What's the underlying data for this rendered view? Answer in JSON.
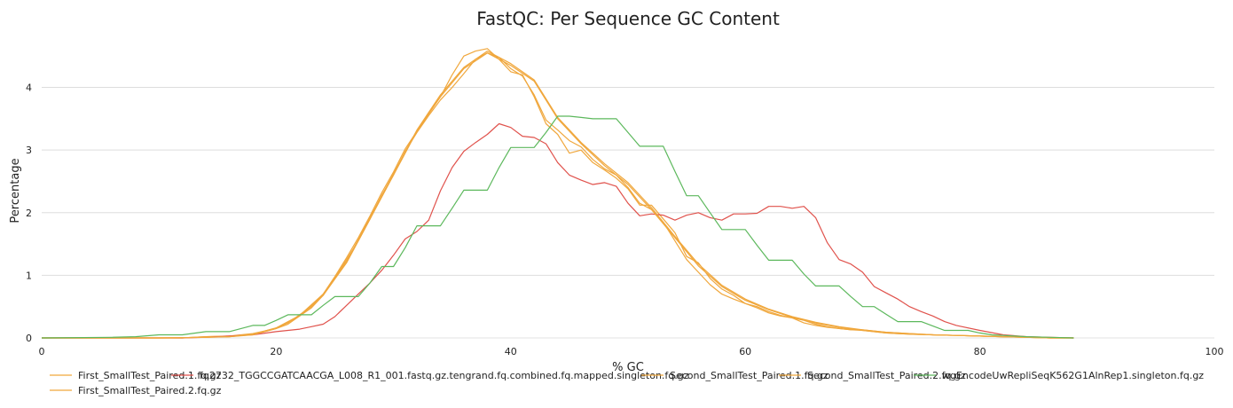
{
  "chart_data": {
    "type": "line",
    "title": "FastQC: Per Sequence GC Content",
    "xlabel": "% GC",
    "ylabel": "Percentage",
    "xlim": [
      0,
      100
    ],
    "ylim": [
      0,
      4.9
    ],
    "xticks": [
      0,
      20,
      40,
      60,
      80,
      100
    ],
    "yticks": [
      0,
      1,
      2,
      3,
      4
    ],
    "grid": "horizontal",
    "legend_position": "bottom",
    "series": [
      {
        "name": "First_SmallTest_Paired.1.fq.gz",
        "color": "#f0a73c",
        "x": [
          0,
          2,
          4,
          6,
          8,
          10,
          12,
          14,
          16,
          17,
          18,
          19,
          20,
          21,
          22,
          23,
          24,
          25,
          26,
          27,
          28,
          29,
          30,
          31,
          32,
          33,
          34,
          35,
          36,
          37,
          38,
          39,
          40,
          41,
          42,
          43,
          44,
          45,
          46,
          47,
          48,
          49,
          50,
          51,
          52,
          53,
          54,
          55,
          56,
          57,
          58,
          59,
          60,
          61,
          62,
          63,
          64,
          65,
          66,
          67,
          68,
          69,
          70,
          72,
          74,
          76,
          78,
          80,
          82,
          84,
          86,
          88
        ],
        "y": [
          0,
          0,
          0,
          0,
          0,
          0,
          0,
          0.02,
          0.03,
          0.04,
          0.06,
          0.1,
          0.15,
          0.22,
          0.35,
          0.48,
          0.68,
          0.95,
          1.25,
          1.55,
          1.9,
          2.28,
          2.6,
          2.98,
          3.28,
          3.55,
          3.8,
          4.0,
          4.22,
          4.45,
          4.55,
          4.48,
          4.3,
          4.18,
          3.88,
          3.48,
          3.32,
          3.15,
          3.05,
          2.85,
          2.7,
          2.6,
          2.4,
          2.15,
          2.05,
          1.85,
          1.55,
          1.25,
          1.05,
          0.85,
          0.7,
          0.62,
          0.55,
          0.48,
          0.4,
          0.35,
          0.32,
          0.28,
          0.22,
          0.18,
          0.15,
          0.13,
          0.12,
          0.08,
          0.06,
          0.05,
          0.04,
          0.03,
          0.02,
          0.01,
          0,
          0
        ]
      },
      {
        "name": "First_SmallTest_Paired.2.fq.gz",
        "color": "#f0a73c",
        "x": [
          0,
          2,
          4,
          6,
          8,
          10,
          12,
          14,
          16,
          17,
          18,
          19,
          20,
          21,
          22,
          23,
          24,
          25,
          26,
          27,
          28,
          29,
          30,
          31,
          32,
          33,
          34,
          35,
          36,
          37,
          38,
          39,
          40,
          41,
          42,
          43,
          44,
          45,
          46,
          47,
          48,
          49,
          50,
          51,
          52,
          53,
          54,
          55,
          56,
          57,
          58,
          59,
          60,
          61,
          62,
          63,
          64,
          65,
          66,
          67,
          68,
          69,
          70,
          72,
          74,
          76,
          78,
          80,
          82,
          84,
          86,
          88
        ],
        "y": [
          0,
          0,
          0,
          0,
          0,
          0,
          0,
          0.02,
          0.03,
          0.05,
          0.07,
          0.11,
          0.16,
          0.24,
          0.37,
          0.5,
          0.7,
          0.98,
          1.28,
          1.6,
          1.95,
          2.32,
          2.65,
          3.02,
          3.3,
          3.6,
          3.85,
          4.2,
          4.5,
          4.58,
          4.62,
          4.45,
          4.25,
          4.2,
          3.85,
          3.42,
          3.25,
          2.95,
          3.0,
          2.8,
          2.68,
          2.55,
          2.38,
          2.12,
          2.12,
          1.9,
          1.68,
          1.3,
          1.2,
          0.95,
          0.78,
          0.68,
          0.55,
          0.5,
          0.42,
          0.36,
          0.32,
          0.24,
          0.2,
          0.17,
          0.15,
          0.13,
          0.13,
          0.09,
          0.07,
          0.05,
          0.04,
          0.03,
          0.02,
          0.01,
          0,
          0
        ]
      },
      {
        "name": "fq2732_TGGCCGATCAACGA_L008_R1_001.fastq.gz.tengrand.fq.combined.fq.mapped.singleton.fq.gz",
        "color": "#e0524c",
        "x": [
          0,
          4,
          8,
          12,
          14,
          16,
          18,
          20,
          22,
          23,
          24,
          25,
          26,
          27,
          28,
          29,
          30,
          31,
          32,
          33,
          34,
          35,
          36,
          37,
          38,
          39,
          40,
          41,
          42,
          43,
          44,
          45,
          46,
          47,
          48,
          49,
          50,
          51,
          52,
          53,
          54,
          55,
          56,
          57,
          58,
          59,
          60,
          61,
          62,
          63,
          64,
          65,
          66,
          67,
          68,
          69,
          70,
          71,
          72,
          73,
          74,
          75,
          76,
          77,
          78,
          80,
          82,
          84,
          86,
          88
        ],
        "y": [
          0,
          0,
          0,
          0,
          0.01,
          0.03,
          0.05,
          0.1,
          0.14,
          0.18,
          0.22,
          0.34,
          0.52,
          0.7,
          0.88,
          1.08,
          1.32,
          1.58,
          1.7,
          1.88,
          2.35,
          2.72,
          2.98,
          3.12,
          3.25,
          3.42,
          3.36,
          3.22,
          3.2,
          3.1,
          2.8,
          2.6,
          2.52,
          2.45,
          2.48,
          2.42,
          2.15,
          1.95,
          1.98,
          1.96,
          1.88,
          1.96,
          2.0,
          1.92,
          1.88,
          1.98,
          1.98,
          1.99,
          2.1,
          2.1,
          2.07,
          2.1,
          1.92,
          1.52,
          1.25,
          1.18,
          1.05,
          0.82,
          0.72,
          0.62,
          0.5,
          0.42,
          0.35,
          0.26,
          0.2,
          0.12,
          0.05,
          0.02,
          0.01,
          0
        ]
      },
      {
        "name": "Second_SmallTest_Paired.1.fq.gz",
        "color": "#f0a73c",
        "x": [
          0,
          10,
          14,
          16,
          18,
          20,
          22,
          24,
          26,
          28,
          30,
          32,
          34,
          36,
          38,
          40,
          42,
          44,
          46,
          48,
          50,
          52,
          54,
          56,
          58,
          60,
          62,
          64,
          66,
          68,
          70,
          72,
          74,
          76,
          78,
          80,
          82,
          84,
          86,
          88
        ],
        "y": [
          0,
          0,
          0.01,
          0.02,
          0.05,
          0.15,
          0.35,
          0.68,
          1.2,
          1.9,
          2.6,
          3.3,
          3.85,
          4.3,
          4.55,
          4.35,
          4.1,
          3.5,
          3.1,
          2.75,
          2.45,
          2.05,
          1.6,
          1.15,
          0.82,
          0.6,
          0.45,
          0.33,
          0.24,
          0.17,
          0.12,
          0.08,
          0.06,
          0.05,
          0.04,
          0.03,
          0.02,
          0.01,
          0,
          0
        ]
      },
      {
        "name": "Second_SmallTest_Paired.2.fq.gz",
        "color": "#f0a73c",
        "x": [
          0,
          10,
          14,
          16,
          18,
          20,
          22,
          24,
          26,
          28,
          30,
          32,
          34,
          36,
          38,
          40,
          42,
          44,
          46,
          48,
          50,
          52,
          54,
          56,
          58,
          60,
          62,
          64,
          66,
          68,
          70,
          72,
          74,
          76,
          78,
          80,
          82,
          84,
          86,
          88
        ],
        "y": [
          0,
          0,
          0.01,
          0.02,
          0.06,
          0.16,
          0.36,
          0.7,
          1.22,
          1.92,
          2.62,
          3.32,
          3.88,
          4.32,
          4.58,
          4.38,
          4.12,
          3.52,
          3.12,
          2.78,
          2.48,
          2.08,
          1.62,
          1.18,
          0.84,
          0.62,
          0.46,
          0.34,
          0.25,
          0.18,
          0.13,
          0.09,
          0.07,
          0.05,
          0.04,
          0.03,
          0.02,
          0.01,
          0,
          0
        ]
      },
      {
        "name": "wgEncodeUwRepliSeqK562G1AlnRep1.singleton.fq.gz",
        "color": "#5cb85c",
        "x": [
          0,
          6,
          8,
          10,
          12,
          14,
          16,
          18,
          19,
          20,
          21,
          22,
          23,
          24,
          25,
          26,
          27,
          28,
          29,
          30,
          31,
          32,
          33,
          34,
          35,
          36,
          37,
          38,
          39,
          40,
          41,
          42,
          43,
          44,
          45,
          46,
          47,
          48,
          49,
          50,
          51,
          52,
          53,
          54,
          55,
          56,
          57,
          58,
          59,
          60,
          61,
          62,
          63,
          64,
          65,
          66,
          67,
          68,
          69,
          70,
          71,
          72,
          73,
          74,
          75,
          76,
          77,
          78,
          79,
          80,
          81,
          82,
          84,
          86,
          88
        ],
        "y": [
          0,
          0.01,
          0.02,
          0.05,
          0.05,
          0.1,
          0.1,
          0.2,
          0.2,
          0.28,
          0.37,
          0.37,
          0.37,
          0.52,
          0.66,
          0.66,
          0.66,
          0.88,
          1.14,
          1.14,
          1.44,
          1.79,
          1.79,
          1.79,
          2.07,
          2.36,
          2.36,
          2.36,
          2.72,
          3.04,
          3.04,
          3.04,
          3.28,
          3.54,
          3.54,
          3.52,
          3.5,
          3.5,
          3.5,
          3.28,
          3.06,
          3.06,
          3.06,
          2.66,
          2.27,
          2.27,
          2.0,
          1.73,
          1.73,
          1.73,
          1.48,
          1.24,
          1.24,
          1.24,
          1.02,
          0.83,
          0.83,
          0.83,
          0.66,
          0.5,
          0.5,
          0.38,
          0.26,
          0.26,
          0.26,
          0.19,
          0.12,
          0.12,
          0.12,
          0.08,
          0.05,
          0.04,
          0.02,
          0.01,
          0
        ]
      }
    ]
  }
}
